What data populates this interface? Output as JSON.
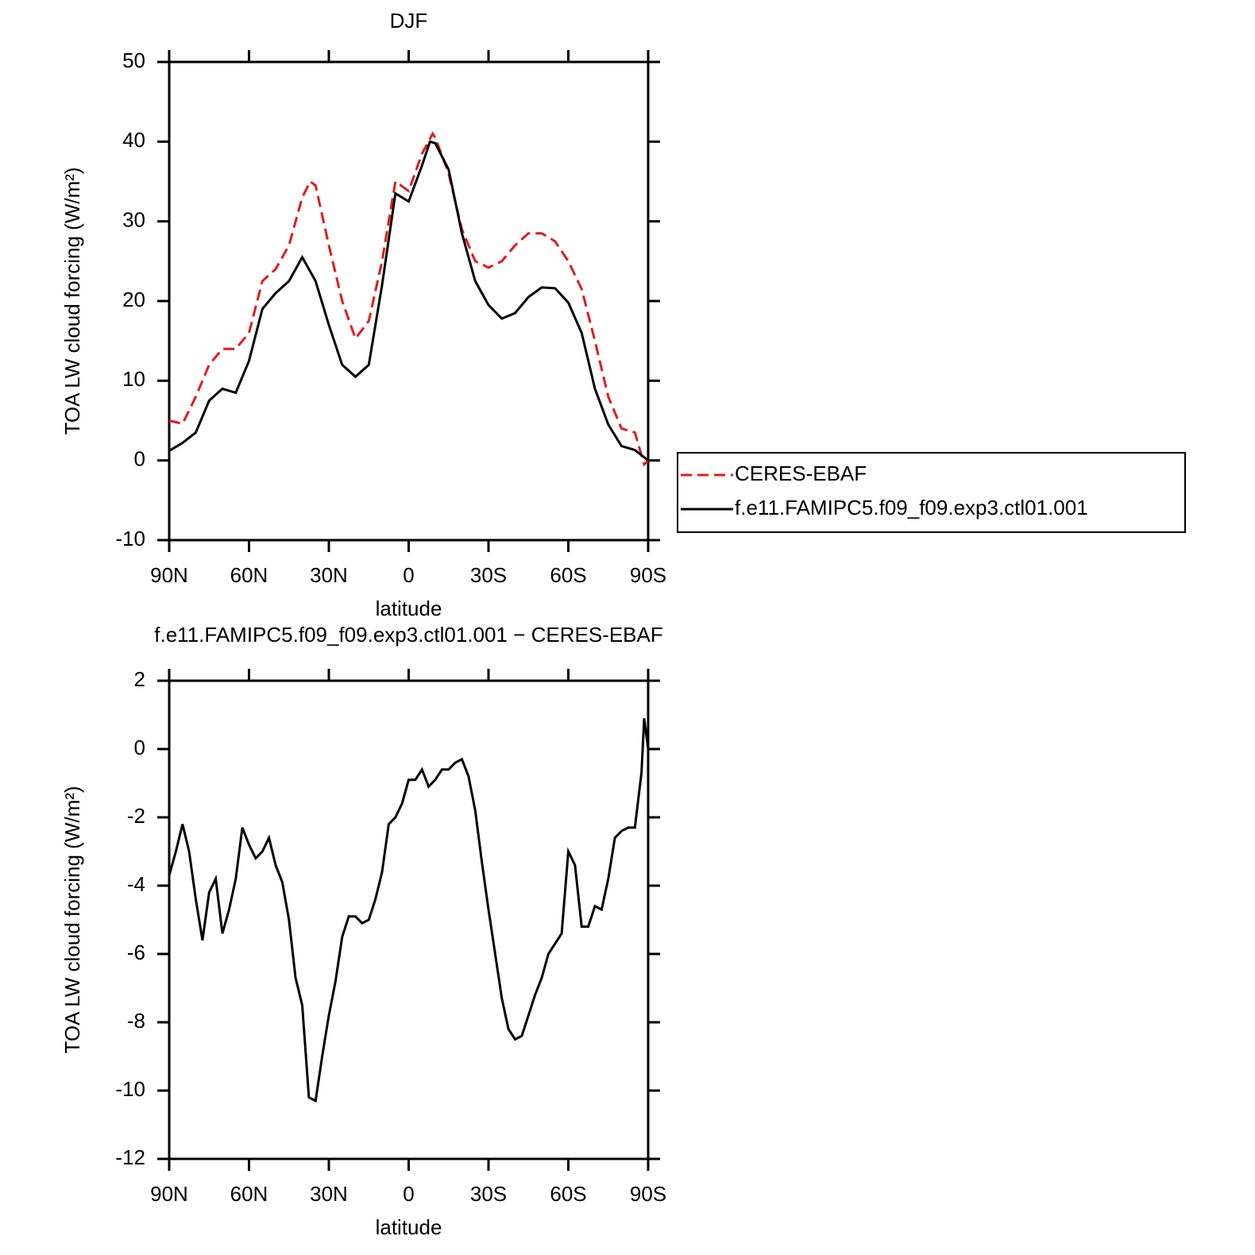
{
  "chart_data": [
    {
      "type": "line",
      "title": "DJF",
      "xlabel": "latitude",
      "ylabel": "TOA LW cloud forcing (W/m²)",
      "xlim": [
        90,
        -90
      ],
      "xticks": [
        {
          "value": 90,
          "label": "90N"
        },
        {
          "value": 60,
          "label": "60N"
        },
        {
          "value": 30,
          "label": "30N"
        },
        0,
        {
          "value": -30,
          "label": "30S"
        },
        {
          "value": -60,
          "label": "60S"
        },
        {
          "value": -90,
          "label": "90S"
        }
      ],
      "ylim": [
        -10,
        50
      ],
      "yticks": [
        -10,
        0,
        10,
        20,
        30,
        40,
        50
      ],
      "legend": "right",
      "series": [
        {
          "name": "CERES-EBAF",
          "color": "#e41a1c",
          "line_style": "dashed",
          "x": [
            90,
            85,
            80,
            75,
            70,
            65,
            60,
            55,
            50,
            45,
            40,
            37,
            35,
            30,
            25,
            20,
            15,
            10,
            5,
            0,
            -5,
            -9,
            -10,
            -15,
            -20,
            -25,
            -30,
            -35,
            -40,
            -45,
            -50,
            -55,
            -60,
            -65,
            -70,
            -75,
            -80,
            -85,
            -88.5,
            -90
          ],
          "values": [
            5.0,
            4.6,
            8,
            12,
            14,
            14,
            16,
            22.5,
            24,
            27,
            33,
            35,
            34.5,
            27,
            20,
            15.3,
            17.5,
            25,
            35,
            33.8,
            38.5,
            41,
            40.5,
            36,
            29,
            25,
            24.2,
            25,
            27,
            28.5,
            28.5,
            27.5,
            25,
            21.5,
            15,
            8,
            4,
            3.5,
            -0.5,
            0
          ]
        },
        {
          "name": "f.e11.FAMIPC5.f09_f09.exp3.ctl01.001",
          "color": "#000000",
          "line_style": "solid",
          "x": [
            90,
            85,
            80,
            75,
            70,
            65,
            60,
            55,
            50,
            45,
            40,
            35,
            30,
            25,
            20,
            15,
            10,
            5,
            0,
            -5,
            -8,
            -10,
            -15,
            -20,
            -25,
            -30,
            -35,
            -40,
            -45,
            -50,
            -55,
            -60,
            -65,
            -70,
            -75,
            -80,
            -85,
            -90
          ],
          "values": [
            1.2,
            2.2,
            3.5,
            7.5,
            9,
            8.5,
            12.5,
            19,
            21,
            22.5,
            25.5,
            22.5,
            17,
            12,
            10.5,
            12,
            22,
            33.5,
            32.5,
            37,
            40,
            39.8,
            36.5,
            28.5,
            22.5,
            19.5,
            17.8,
            18.5,
            20.5,
            21.7,
            21.6,
            19.8,
            16,
            9,
            4.5,
            1.8,
            1.3,
            0
          ]
        }
      ]
    },
    {
      "type": "line",
      "title": "f.e11.FAMIPC5.f09_f09.exp3.ctl01.001 − CERES-EBAF",
      "xlabel": "latitude",
      "ylabel": "TOA LW cloud forcing (W/m²)",
      "xlim": [
        90,
        -90
      ],
      "xticks": [
        {
          "value": 90,
          "label": "90N"
        },
        {
          "value": 60,
          "label": "60N"
        },
        {
          "value": 30,
          "label": "30N"
        },
        0,
        {
          "value": -30,
          "label": "30S"
        },
        {
          "value": -60,
          "label": "60S"
        },
        {
          "value": -90,
          "label": "90S"
        }
      ],
      "ylim": [
        -12,
        2
      ],
      "yticks": [
        -12,
        -10,
        -8,
        -6,
        -4,
        -2,
        0,
        2
      ],
      "series": [
        {
          "color": "#000000",
          "line_style": "solid",
          "x": [
            90,
            87.5,
            85,
            82.5,
            80,
            77.5,
            75,
            72.5,
            70,
            67.5,
            65,
            62.5,
            60,
            57.5,
            55,
            52.5,
            50,
            47.5,
            45,
            42.5,
            40,
            37.5,
            35,
            32.5,
            30,
            27.5,
            25,
            22.5,
            20,
            17.5,
            15,
            12.5,
            10,
            7.5,
            5,
            2.5,
            0,
            -2.5,
            -5,
            -7.5,
            -10,
            -12.5,
            -15,
            -17.5,
            -20,
            -22.5,
            -25,
            -27.5,
            -30,
            -32.5,
            -35,
            -37.5,
            -40,
            -42.5,
            -45,
            -47.5,
            -50,
            -52.5,
            -55,
            -57.5,
            -60,
            -62.5,
            -65,
            -67.5,
            -70,
            -72.5,
            -75,
            -77.5,
            -80,
            -82.5,
            -85,
            -87.5,
            -88.5,
            -90
          ],
          "values": [
            -3.7,
            -3.0,
            -2.2,
            -3.0,
            -4.4,
            -5.6,
            -4.2,
            -3.8,
            -5.4,
            -4.7,
            -3.8,
            -2.3,
            -2.8,
            -3.2,
            -3.0,
            -2.6,
            -3.4,
            -3.9,
            -5.0,
            -6.7,
            -7.5,
            -10.2,
            -10.3,
            -9.0,
            -7.8,
            -6.8,
            -5.5,
            -4.9,
            -4.9,
            -5.1,
            -5.0,
            -4.4,
            -3.6,
            -2.2,
            -2.0,
            -1.6,
            -0.9,
            -0.9,
            -0.6,
            -1.1,
            -0.9,
            -0.6,
            -0.6,
            -0.4,
            -0.3,
            -0.8,
            -1.8,
            -3.3,
            -4.7,
            -6.0,
            -7.3,
            -8.2,
            -8.5,
            -8.4,
            -7.8,
            -7.2,
            -6.7,
            -6.0,
            -5.7,
            -5.4,
            -3.0,
            -3.4,
            -5.2,
            -5.2,
            -4.6,
            -4.7,
            -3.8,
            -2.6,
            -2.4,
            -2.3,
            -2.3,
            -0.7,
            0.9,
            0
          ]
        }
      ]
    }
  ]
}
